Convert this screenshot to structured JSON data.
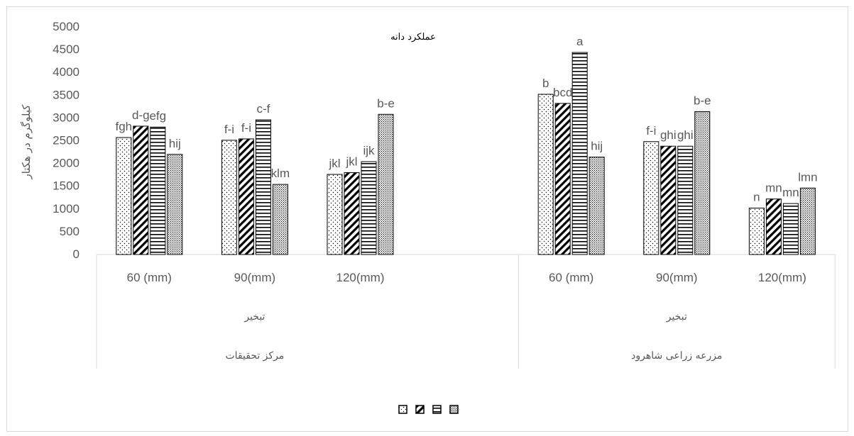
{
  "chart_data": {
    "type": "bar",
    "title": "عملکرد دانه",
    "ylabel": "کیلوگرم در هکتار",
    "xlabel": "",
    "ylim": [
      0,
      5000
    ],
    "ytick_step": 500,
    "yticks": [
      "0",
      "500",
      "1000",
      "1500",
      "2000",
      "2500",
      "3000",
      "3500",
      "4000",
      "4500",
      "5000"
    ],
    "gridlines": false,
    "legend_position": "bottom",
    "categories": [
      "60 (mm)",
      "90(mm)",
      "120(mm)",
      "",
      "60 (mm)",
      "90(mm)",
      "120(mm)"
    ],
    "group_labels": [
      {
        "level1": "تبخیر",
        "level2": "مرکز تحقیقات",
        "span": [
          0,
          3
        ]
      },
      {
        "level1": "تبخیر",
        "level2": "مزرعه زراعی شاهرود",
        "span": [
          4,
          7
        ]
      }
    ],
    "series": [
      {
        "pattern": "dots",
        "values": [
          2570,
          2510,
          1760,
          null,
          3520,
          2480,
          1020
        ],
        "labels": [
          "fgh",
          "f-i",
          "jkl",
          "",
          "b",
          "f-i",
          "n"
        ]
      },
      {
        "pattern": "diagonal",
        "values": [
          2820,
          2540,
          1800,
          null,
          3320,
          2380,
          1220
        ],
        "labels": [
          "d-g",
          "f-i",
          "jkl",
          "",
          "bcd",
          "ghi",
          "mn"
        ]
      },
      {
        "pattern": "horizontal",
        "values": [
          2800,
          2960,
          2040,
          null,
          4440,
          2380,
          1120
        ],
        "labels": [
          "efg",
          "c-f",
          "ijk",
          "",
          "a",
          "ghi",
          "mn"
        ]
      },
      {
        "pattern": "dense-dots",
        "values": [
          2200,
          1540,
          3080,
          null,
          2140,
          3140,
          1460
        ],
        "labels": [
          "hij",
          "klm",
          "b-e",
          "",
          "hij",
          "b-e",
          "lmn"
        ]
      }
    ],
    "colors": {
      "bar_stroke": "#000000",
      "axis": "#d9d9d9",
      "text": "#595959",
      "title_text": "#000000"
    }
  }
}
